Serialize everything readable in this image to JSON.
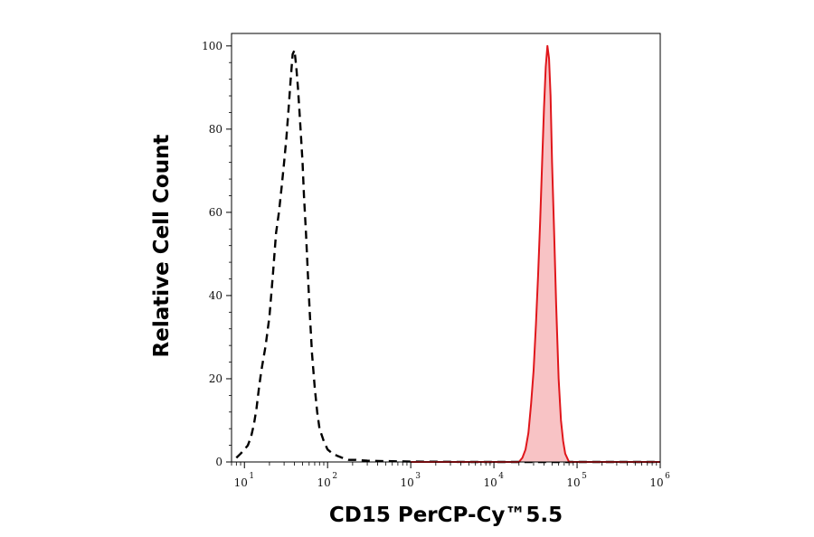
{
  "chart_data": {
    "type": "area",
    "title": "",
    "xlabel": "CD15 PerCP-Cy™5.5",
    "ylabel": "Relative Cell Count",
    "x_scale": "log",
    "xlim": [
      7,
      1000000
    ],
    "ylim": [
      0,
      103
    ],
    "x_ticks": [
      {
        "base": "10",
        "exp": "1",
        "value": 10
      },
      {
        "base": "10",
        "exp": "2",
        "value": 100
      },
      {
        "base": "10",
        "exp": "3",
        "value": 1000
      },
      {
        "base": "10",
        "exp": "4",
        "value": 10000
      },
      {
        "base": "10",
        "exp": "5",
        "value": 100000
      },
      {
        "base": "10",
        "exp": "6",
        "value": 1000000
      }
    ],
    "y_ticks": [
      "0",
      "20",
      "40",
      "60",
      "80",
      "100"
    ],
    "y_tick_values": [
      0,
      20,
      40,
      60,
      80,
      100
    ],
    "grid": false,
    "series": [
      {
        "style": "dashed",
        "fill": false,
        "color": "#000000",
        "x": [
          8,
          9,
          10,
          11,
          12,
          13,
          14,
          15,
          16,
          18,
          20,
          22,
          24,
          26,
          28,
          30,
          32,
          34,
          36,
          38,
          40,
          42,
          44,
          46,
          48,
          50,
          52,
          55,
          58,
          61,
          65,
          70,
          75,
          80,
          90,
          100,
          115,
          130,
          150,
          180,
          220,
          300,
          500,
          1000,
          5000,
          1000000
        ],
        "y": [
          1,
          2,
          3,
          4,
          6,
          9,
          13,
          18,
          22,
          28,
          35,
          45,
          55,
          60,
          66,
          72,
          78,
          85,
          92,
          98,
          99,
          95,
          90,
          84,
          78,
          72,
          64,
          55,
          45,
          36,
          26,
          18,
          12,
          8,
          5,
          3,
          2,
          1.5,
          1,
          0.5,
          0.5,
          0.3,
          0.2,
          0.1,
          0,
          0
        ]
      },
      {
        "style": "solid",
        "fill": true,
        "color": "#e0161b",
        "fill_color": "#f8c3c5",
        "x": [
          1000,
          20000,
          22000,
          24000,
          26000,
          28000,
          30000,
          32000,
          34000,
          36000,
          38000,
          40000,
          42000,
          44000,
          46000,
          48000,
          50000,
          53000,
          56000,
          60000,
          64000,
          68000,
          72000,
          80000,
          1000000
        ],
        "y": [
          0,
          0,
          1,
          3,
          7,
          14,
          22,
          33,
          45,
          58,
          72,
          85,
          95,
          100,
          97,
          88,
          72,
          55,
          38,
          20,
          10,
          5,
          2,
          0,
          0
        ]
      }
    ]
  }
}
